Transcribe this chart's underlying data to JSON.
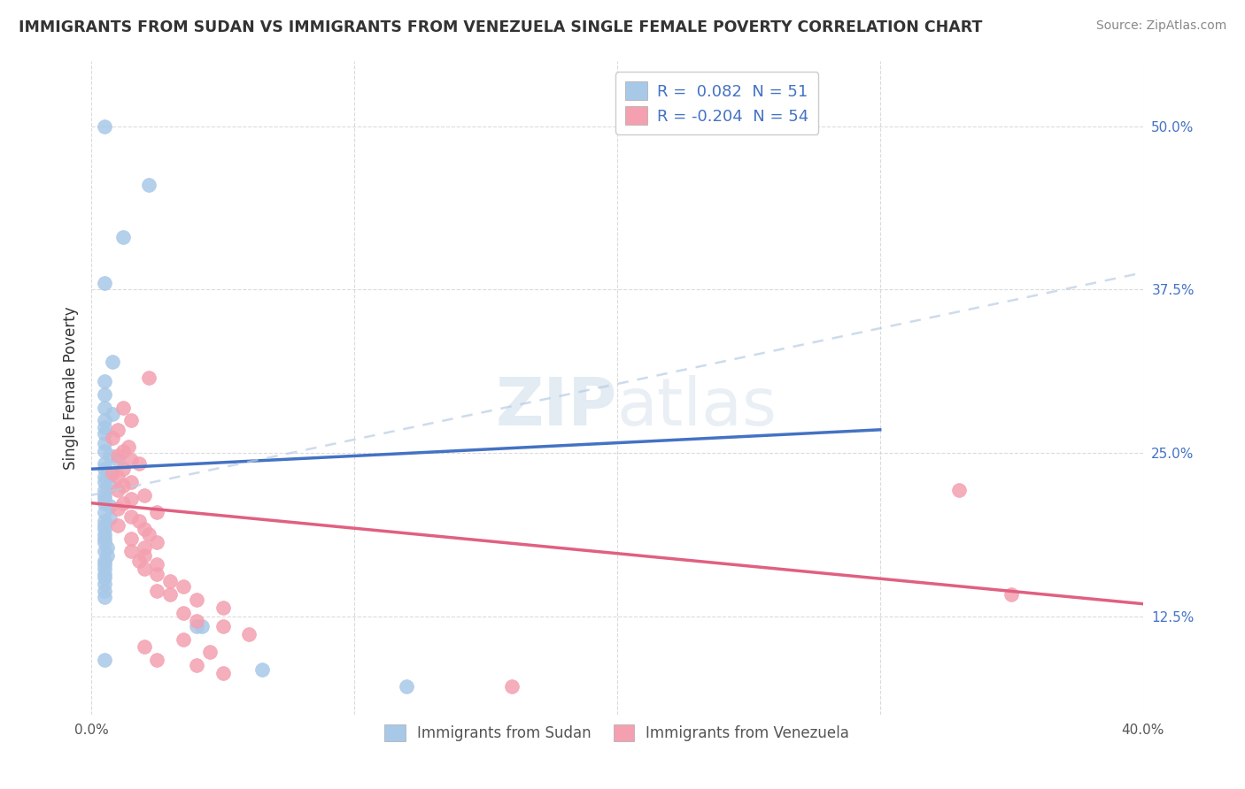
{
  "title": "IMMIGRANTS FROM SUDAN VS IMMIGRANTS FROM VENEZUELA SINGLE FEMALE POVERTY CORRELATION CHART",
  "source": "Source: ZipAtlas.com",
  "xlabel": "",
  "ylabel": "Single Female Poverty",
  "xlim": [
    0.0,
    0.4
  ],
  "ylim": [
    0.05,
    0.55
  ],
  "xticks": [
    0.0,
    0.1,
    0.2,
    0.3,
    0.4
  ],
  "xticklabels": [
    "0.0%",
    "",
    "",
    "",
    "40.0%"
  ],
  "ytick_positions": [
    0.125,
    0.25,
    0.375,
    0.5
  ],
  "ytick_labels": [
    "12.5%",
    "25.0%",
    "37.5%",
    "50.0%"
  ],
  "legend_r_sudan": " 0.082",
  "legend_n_sudan": "51",
  "legend_r_venezuela": "-0.204",
  "legend_n_venezuela": "54",
  "sudan_color": "#a8c8e8",
  "venezuela_color": "#f4a0b0",
  "sudan_line_color": "#4472c4",
  "venezuela_line_color": "#e06080",
  "sudan_line_dashed_color": "#b0c8e8",
  "watermark_zip": "ZIP",
  "watermark_atlas": "atlas",
  "sudan_points": [
    [
      0.005,
      0.5
    ],
    [
      0.022,
      0.455
    ],
    [
      0.012,
      0.415
    ],
    [
      0.005,
      0.38
    ],
    [
      0.008,
      0.32
    ],
    [
      0.005,
      0.305
    ],
    [
      0.005,
      0.295
    ],
    [
      0.005,
      0.285
    ],
    [
      0.008,
      0.28
    ],
    [
      0.005,
      0.275
    ],
    [
      0.005,
      0.27
    ],
    [
      0.005,
      0.265
    ],
    [
      0.005,
      0.258
    ],
    [
      0.005,
      0.252
    ],
    [
      0.007,
      0.248
    ],
    [
      0.01,
      0.245
    ],
    [
      0.005,
      0.242
    ],
    [
      0.005,
      0.238
    ],
    [
      0.007,
      0.235
    ],
    [
      0.005,
      0.232
    ],
    [
      0.005,
      0.228
    ],
    [
      0.007,
      0.225
    ],
    [
      0.005,
      0.222
    ],
    [
      0.005,
      0.218
    ],
    [
      0.005,
      0.215
    ],
    [
      0.005,
      0.212
    ],
    [
      0.007,
      0.21
    ],
    [
      0.005,
      0.205
    ],
    [
      0.007,
      0.2
    ],
    [
      0.005,
      0.198
    ],
    [
      0.005,
      0.195
    ],
    [
      0.005,
      0.192
    ],
    [
      0.005,
      0.188
    ],
    [
      0.005,
      0.185
    ],
    [
      0.005,
      0.182
    ],
    [
      0.006,
      0.178
    ],
    [
      0.005,
      0.175
    ],
    [
      0.006,
      0.172
    ],
    [
      0.005,
      0.168
    ],
    [
      0.005,
      0.165
    ],
    [
      0.005,
      0.162
    ],
    [
      0.005,
      0.158
    ],
    [
      0.005,
      0.155
    ],
    [
      0.005,
      0.15
    ],
    [
      0.005,
      0.145
    ],
    [
      0.005,
      0.14
    ],
    [
      0.04,
      0.118
    ],
    [
      0.042,
      0.118
    ],
    [
      0.005,
      0.092
    ],
    [
      0.065,
      0.085
    ],
    [
      0.12,
      0.072
    ]
  ],
  "venezuela_points": [
    [
      0.022,
      0.308
    ],
    [
      0.012,
      0.285
    ],
    [
      0.015,
      0.275
    ],
    [
      0.01,
      0.268
    ],
    [
      0.008,
      0.262
    ],
    [
      0.014,
      0.255
    ],
    [
      0.012,
      0.252
    ],
    [
      0.01,
      0.248
    ],
    [
      0.015,
      0.245
    ],
    [
      0.018,
      0.242
    ],
    [
      0.012,
      0.238
    ],
    [
      0.008,
      0.235
    ],
    [
      0.01,
      0.232
    ],
    [
      0.015,
      0.228
    ],
    [
      0.012,
      0.225
    ],
    [
      0.01,
      0.222
    ],
    [
      0.02,
      0.218
    ],
    [
      0.015,
      0.215
    ],
    [
      0.012,
      0.212
    ],
    [
      0.01,
      0.208
    ],
    [
      0.025,
      0.205
    ],
    [
      0.015,
      0.202
    ],
    [
      0.018,
      0.198
    ],
    [
      0.01,
      0.195
    ],
    [
      0.02,
      0.192
    ],
    [
      0.022,
      0.188
    ],
    [
      0.015,
      0.185
    ],
    [
      0.025,
      0.182
    ],
    [
      0.02,
      0.178
    ],
    [
      0.015,
      0.175
    ],
    [
      0.02,
      0.172
    ],
    [
      0.018,
      0.168
    ],
    [
      0.025,
      0.165
    ],
    [
      0.02,
      0.162
    ],
    [
      0.025,
      0.158
    ],
    [
      0.03,
      0.152
    ],
    [
      0.035,
      0.148
    ],
    [
      0.025,
      0.145
    ],
    [
      0.03,
      0.142
    ],
    [
      0.04,
      0.138
    ],
    [
      0.05,
      0.132
    ],
    [
      0.035,
      0.128
    ],
    [
      0.04,
      0.122
    ],
    [
      0.05,
      0.118
    ],
    [
      0.06,
      0.112
    ],
    [
      0.035,
      0.108
    ],
    [
      0.02,
      0.102
    ],
    [
      0.045,
      0.098
    ],
    [
      0.025,
      0.092
    ],
    [
      0.04,
      0.088
    ],
    [
      0.05,
      0.082
    ],
    [
      0.16,
      0.072
    ],
    [
      0.33,
      0.222
    ],
    [
      0.35,
      0.142
    ]
  ],
  "sudan_line": {
    "x0": 0.0,
    "y0": 0.238,
    "x1": 0.3,
    "y1": 0.268
  },
  "venezuela_line": {
    "x0": 0.0,
    "y0": 0.212,
    "x1": 0.4,
    "y1": 0.135
  },
  "sudan_dashed_line": {
    "x0": 0.0,
    "y0": 0.218,
    "x1": 0.4,
    "y1": 0.388
  }
}
